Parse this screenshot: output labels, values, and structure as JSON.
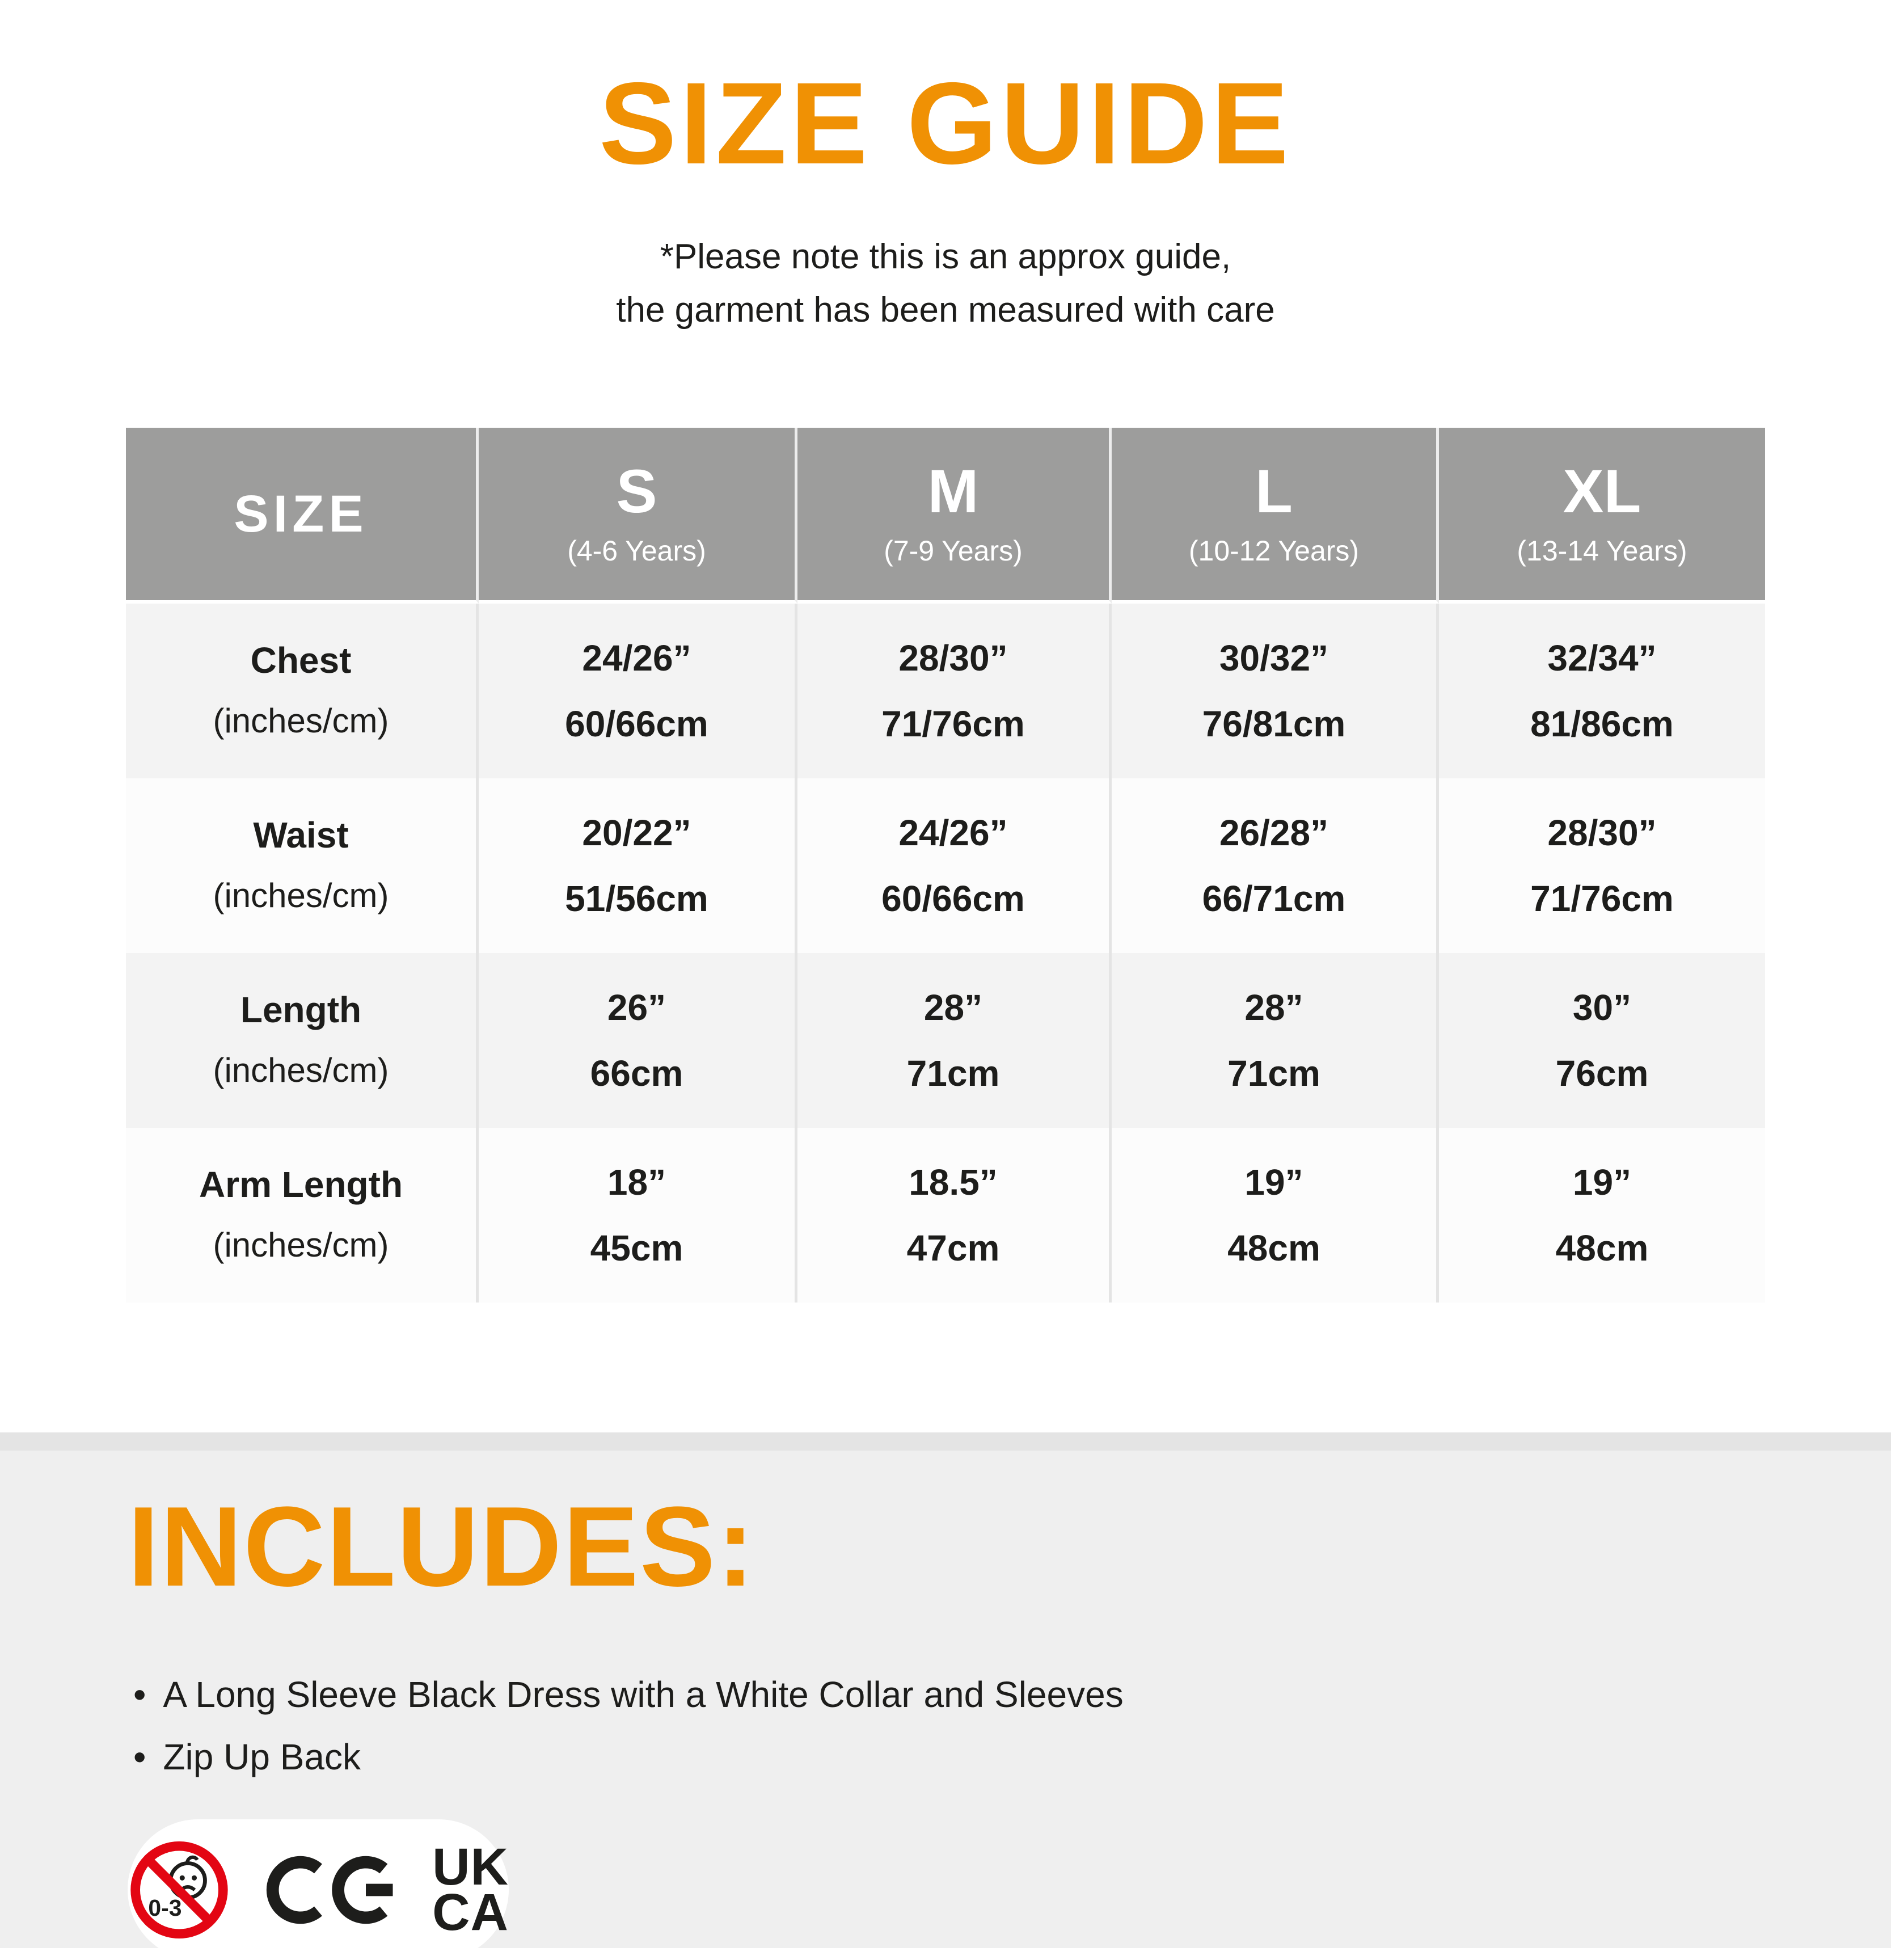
{
  "title": "SIZE GUIDE",
  "subtitle_line1": "*Please note this is an approx guide,",
  "subtitle_line2": "the garment has been measured with care",
  "colors": {
    "accent_orange": "#F09104",
    "header_gray": "#9D9D9C",
    "row_gray": "#F3F3F3",
    "row_light": "#FCFCFC",
    "bottom_section_bg": "#EFEFEF",
    "bottom_band": "#E4E4E4",
    "text_dark": "#1D1D1B",
    "warning_red": "#E30613"
  },
  "table": {
    "size_header": "SIZE",
    "columns": [
      {
        "label": "S",
        "sub": "(4-6 Years)"
      },
      {
        "label": "M",
        "sub": "(7-9 Years)"
      },
      {
        "label": "L",
        "sub": "(10-12 Years)"
      },
      {
        "label": "XL",
        "sub": "(13-14 Years)"
      }
    ],
    "rows": [
      {
        "label": "Chest",
        "sub": "(inches/cm)",
        "values": [
          [
            "24/26”",
            "60/66cm"
          ],
          [
            "28/30”",
            "71/76cm"
          ],
          [
            "30/32”",
            "76/81cm"
          ],
          [
            "32/34”",
            "81/86cm"
          ]
        ]
      },
      {
        "label": "Waist",
        "sub": "(inches/cm)",
        "values": [
          [
            "20/22”",
            "51/56cm"
          ],
          [
            "24/26”",
            "60/66cm"
          ],
          [
            "26/28”",
            "66/71cm"
          ],
          [
            "28/30”",
            "71/76cm"
          ]
        ]
      },
      {
        "label": "Length",
        "sub": "(inches/cm)",
        "values": [
          [
            "26”",
            "66cm"
          ],
          [
            "28”",
            "71cm"
          ],
          [
            "28”",
            "71cm"
          ],
          [
            "30”",
            "76cm"
          ]
        ]
      },
      {
        "label": "Arm Length",
        "sub": "(inches/cm)",
        "values": [
          [
            "18”",
            "45cm"
          ],
          [
            "18.5”",
            "47cm"
          ],
          [
            "19”",
            "48cm"
          ],
          [
            "19”",
            "48cm"
          ]
        ]
      }
    ]
  },
  "includes": {
    "heading": "INCLUDES:",
    "items": [
      "A Long Sleeve Black Dress with a White Collar and Sleeves",
      "Zip Up Back"
    ]
  },
  "certifications": {
    "age_warning_label": "0-3",
    "ce_label": "CE",
    "ukca_line1": "UK",
    "ukca_line2": "CA"
  }
}
